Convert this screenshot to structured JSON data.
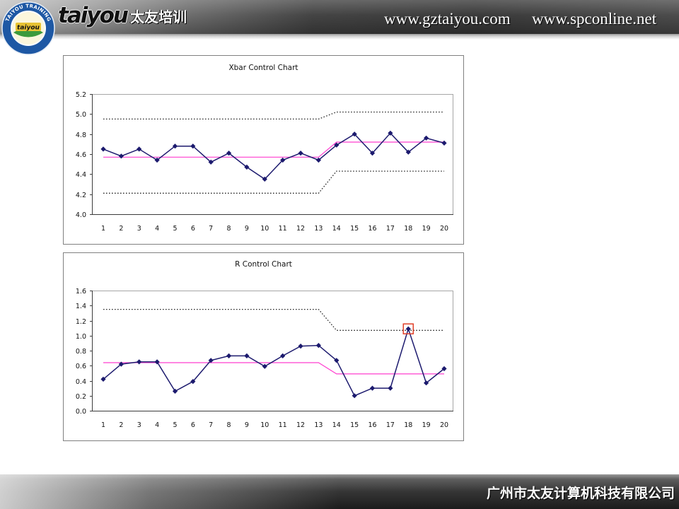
{
  "header": {
    "logo": {
      "ring_text": "TAIYOU TRAINING",
      "inner_text": "taiyou"
    },
    "brand": "taiyou",
    "brand_cn": "太友培训",
    "urls": [
      "www.gztaiyou.com",
      "www.spconline.net"
    ]
  },
  "footer": {
    "company": "广州市太友计算机科技有限公司"
  },
  "chart_data": [
    {
      "type": "line",
      "title": "Xbar Control Chart",
      "x": [
        1,
        2,
        3,
        4,
        5,
        6,
        7,
        8,
        9,
        10,
        11,
        12,
        13,
        14,
        15,
        16,
        17,
        18,
        19,
        20
      ],
      "ylim": [
        4.0,
        5.2
      ],
      "ytick_labels": [
        "4.0",
        "4.2",
        "4.4",
        "4.6",
        "4.8",
        "5.0",
        "5.2"
      ],
      "grid": false,
      "legend": false,
      "series": [
        {
          "values": [
            4.65,
            4.58,
            4.65,
            4.54,
            4.68,
            4.68,
            4.52,
            4.61,
            4.47,
            4.35,
            4.54,
            4.61,
            4.54,
            4.69,
            4.8,
            4.61,
            4.81,
            4.62,
            4.76,
            4.71
          ],
          "markers": true,
          "dashed": false,
          "color": "#1c1a6e"
        },
        {
          "values": [
            4.57,
            4.57,
            4.57,
            4.57,
            4.57,
            4.57,
            4.57,
            4.57,
            4.57,
            4.57,
            4.57,
            4.57,
            4.57,
            4.72,
            4.72,
            4.72,
            4.72,
            4.72,
            4.72,
            4.72
          ],
          "markers": false,
          "dashed": false,
          "color": "#ff3fcf"
        },
        {
          "values": [
            4.95,
            4.95,
            4.95,
            4.95,
            4.95,
            4.95,
            4.95,
            4.95,
            4.95,
            4.95,
            4.95,
            4.95,
            4.95,
            5.02,
            5.02,
            5.02,
            5.02,
            5.02,
            5.02,
            5.02
          ],
          "markers": false,
          "dashed": true,
          "color": "#2a2a2a"
        },
        {
          "values": [
            4.21,
            4.21,
            4.21,
            4.21,
            4.21,
            4.21,
            4.21,
            4.21,
            4.21,
            4.21,
            4.21,
            4.21,
            4.21,
            4.43,
            4.43,
            4.43,
            4.43,
            4.43,
            4.43,
            4.43
          ],
          "markers": false,
          "dashed": true,
          "color": "#2a2a2a"
        }
      ]
    },
    {
      "type": "line",
      "title": "R Control Chart",
      "x": [
        1,
        2,
        3,
        4,
        5,
        6,
        7,
        8,
        9,
        10,
        11,
        12,
        13,
        14,
        15,
        16,
        17,
        18,
        19,
        20
      ],
      "ylim": [
        0.0,
        1.6
      ],
      "ytick_labels": [
        "0.0",
        "0.2",
        "0.4",
        "0.6",
        "0.8",
        "1.0",
        "1.2",
        "1.4",
        "1.6"
      ],
      "grid": false,
      "legend": false,
      "highlight_x": 18,
      "highlight_color": "#e0402a",
      "series": [
        {
          "values": [
            0.42,
            0.62,
            0.65,
            0.65,
            0.26,
            0.39,
            0.67,
            0.73,
            0.73,
            0.59,
            0.73,
            0.86,
            0.87,
            0.67,
            0.2,
            0.3,
            0.3,
            1.09,
            0.37,
            0.56
          ],
          "markers": true,
          "dashed": false,
          "color": "#1c1a6e"
        },
        {
          "values": [
            0.64,
            0.64,
            0.64,
            0.64,
            0.64,
            0.64,
            0.64,
            0.64,
            0.64,
            0.64,
            0.64,
            0.64,
            0.64,
            0.49,
            0.49,
            0.49,
            0.49,
            0.49,
            0.49,
            0.49
          ],
          "markers": false,
          "dashed": false,
          "color": "#ff3fcf"
        },
        {
          "values": [
            1.35,
            1.35,
            1.35,
            1.35,
            1.35,
            1.35,
            1.35,
            1.35,
            1.35,
            1.35,
            1.35,
            1.35,
            1.35,
            1.07,
            1.07,
            1.07,
            1.07,
            1.07,
            1.07,
            1.07
          ],
          "markers": false,
          "dashed": true,
          "color": "#2a2a2a"
        }
      ]
    }
  ]
}
